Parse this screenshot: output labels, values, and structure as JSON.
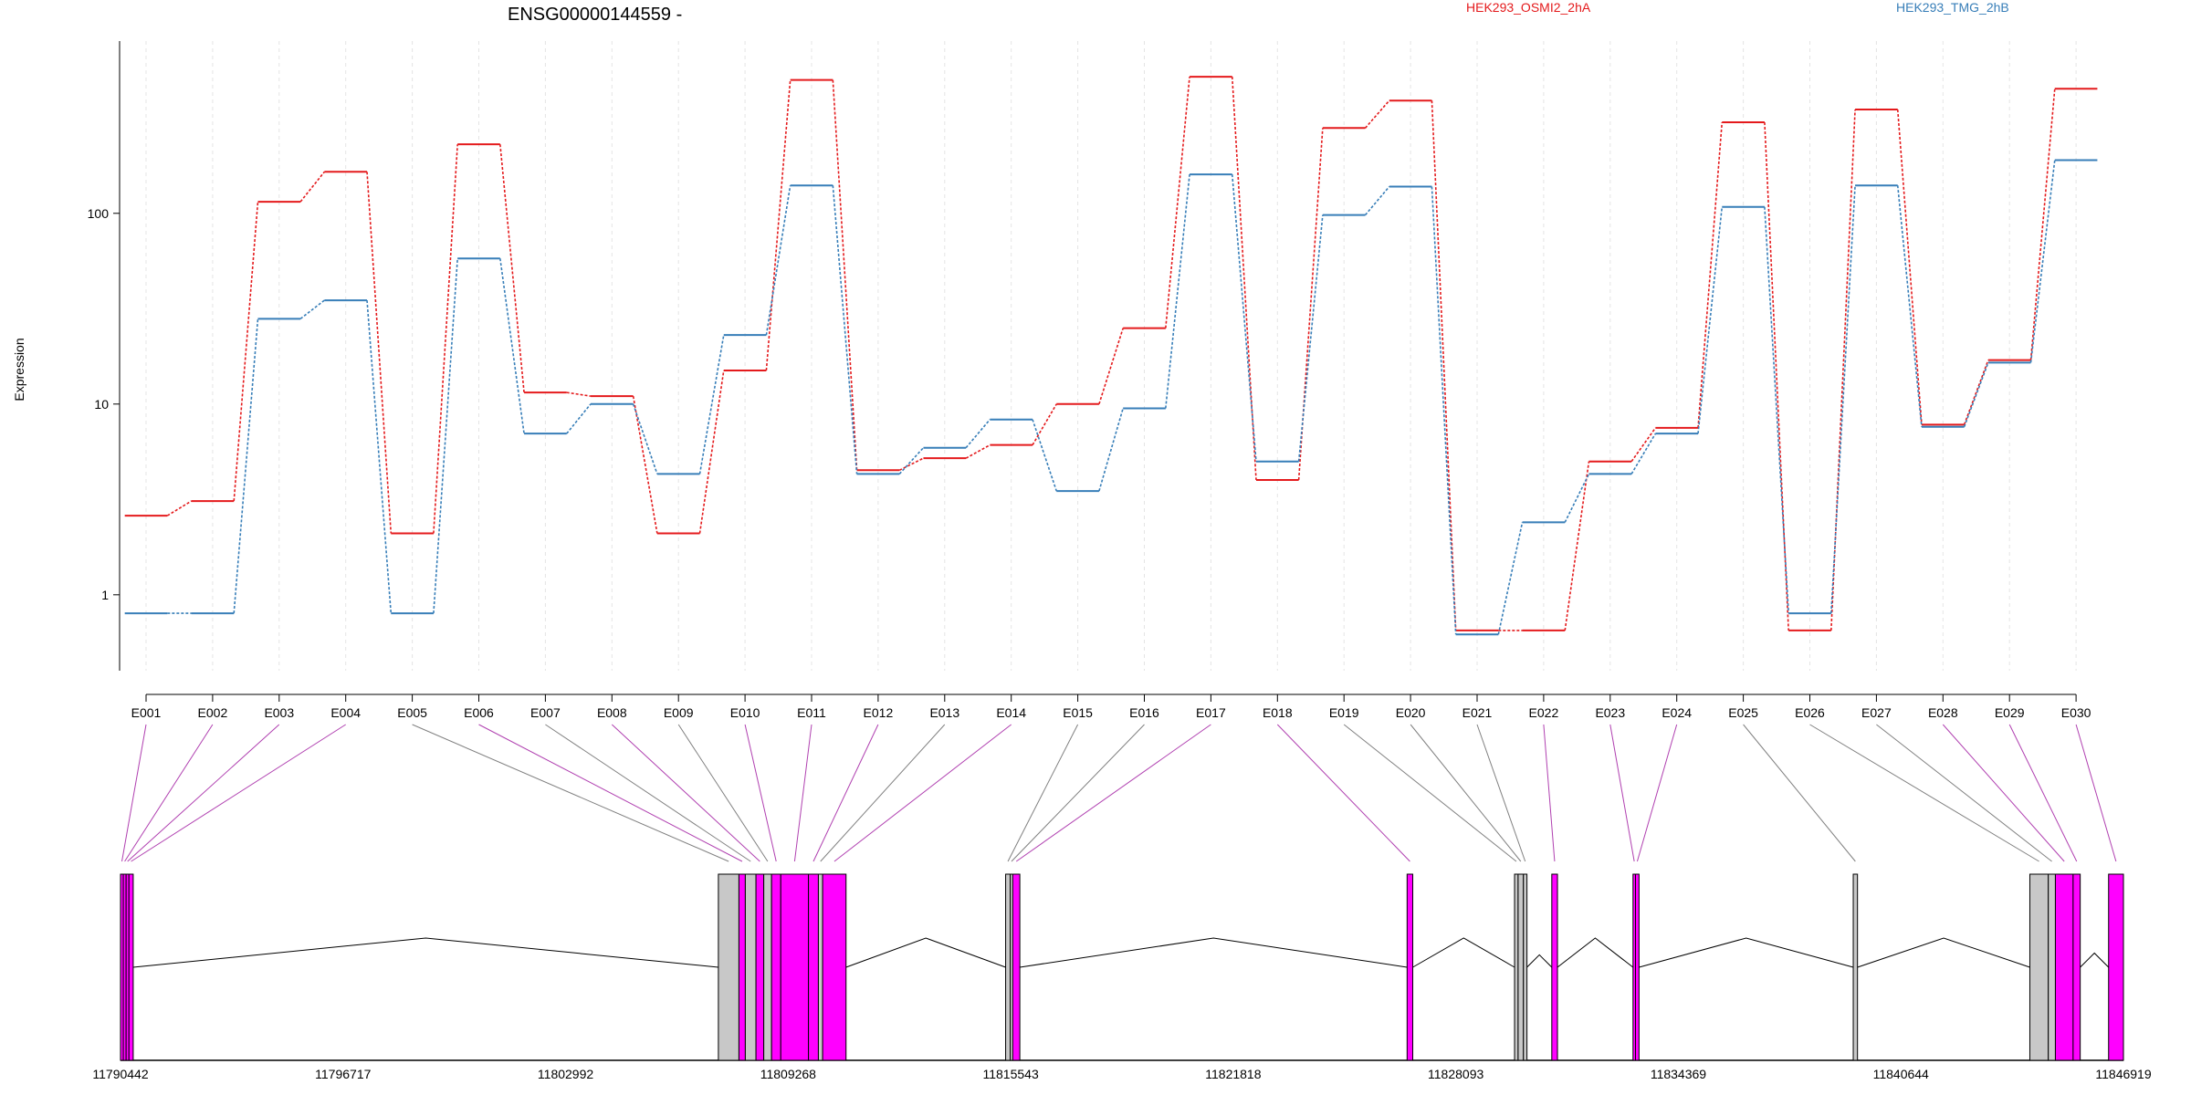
{
  "chart_data": {
    "type": "line",
    "title": "ENSG00000144559 -",
    "xlabel": "",
    "ylabel": "Expression",
    "y_scale": "log",
    "ylim": [
      0.4,
      800
    ],
    "yticks": [
      1,
      10,
      100
    ],
    "legend_placement": "top-right",
    "categories": [
      "E001",
      "E002",
      "E003",
      "E004",
      "E005",
      "E006",
      "E007",
      "E008",
      "E009",
      "E010",
      "E011",
      "E012",
      "E013",
      "E014",
      "E015",
      "E016",
      "E017",
      "E018",
      "E019",
      "E020",
      "E021",
      "E022",
      "E023",
      "E024",
      "E025",
      "E026",
      "E027",
      "E028",
      "E029",
      "E030"
    ],
    "series": [
      {
        "name": "HEK293_OSMI2_2hA",
        "color": "#e41a1c",
        "values": [
          2.6,
          3.1,
          115,
          165,
          2.1,
          230,
          11.5,
          11.0,
          2.1,
          15.0,
          500,
          4.5,
          5.2,
          6.1,
          10.0,
          25,
          520,
          4.0,
          280,
          390,
          0.65,
          0.65,
          5.0,
          7.5,
          300,
          0.65,
          350,
          7.8,
          17,
          450
        ]
      },
      {
        "name": "HEK293_TMG_2hB",
        "color": "#377eb8",
        "values": [
          0.8,
          0.8,
          28,
          35,
          0.8,
          58,
          7.0,
          10.0,
          4.3,
          23,
          140,
          4.3,
          5.9,
          8.3,
          3.5,
          9.5,
          160,
          5.0,
          98,
          138,
          0.62,
          2.4,
          4.3,
          7.0,
          108,
          0.8,
          140,
          7.6,
          16.5,
          190
        ]
      }
    ],
    "gene_model": {
      "coordinates": [
        "11790442",
        "11796717",
        "11802992",
        "11809268",
        "11815543",
        "11821818",
        "11828093",
        "11834369",
        "11840644",
        "11846919"
      ],
      "range": [
        11790442,
        11846919
      ],
      "exon_bins": [
        [
          11790442,
          11790520
        ],
        [
          11790520,
          11790600
        ],
        [
          11790600,
          11790680
        ],
        [
          11790680,
          11790800
        ],
        [
          11807300,
          11807880
        ],
        [
          11807880,
          11808060
        ],
        [
          11808060,
          11808360
        ],
        [
          11808360,
          11808580
        ],
        [
          11808580,
          11808800
        ],
        [
          11808800,
          11809060
        ],
        [
          11809060,
          11809840
        ],
        [
          11809840,
          11810120
        ],
        [
          11810120,
          11810240
        ],
        [
          11810240,
          11810900
        ],
        [
          11815400,
          11815530
        ],
        [
          11815530,
          11815600
        ],
        [
          11815600,
          11815800
        ],
        [
          11826720,
          11826880
        ],
        [
          11829750,
          11829850
        ],
        [
          11829850,
          11830000
        ],
        [
          11830000,
          11830100
        ],
        [
          11830800,
          11830960
        ],
        [
          11833090,
          11833160
        ],
        [
          11833160,
          11833260
        ],
        [
          11839300,
          11839420
        ],
        [
          11844280,
          11844800
        ],
        [
          11844800,
          11845000
        ],
        [
          11845000,
          11845500
        ],
        [
          11845500,
          11845700
        ],
        [
          11846500,
          11846919
        ]
      ],
      "exon_colors": [
        "#ff00ff",
        "#ff00ff",
        "#ff00ff",
        "#ff00ff",
        "#c8c8c8",
        "#ff00ff",
        "#c8c8c8",
        "#ff00ff",
        "#c8c8c8",
        "#ff00ff",
        "#ff00ff",
        "#ff00ff",
        "#c8c8c8",
        "#ff00ff",
        "#c8c8c8",
        "#c8c8c8",
        "#ff00ff",
        "#ff00ff",
        "#c8c8c8",
        "#c8c8c8",
        "#c8c8c8",
        "#ff00ff",
        "#ff00ff",
        "#ff00ff",
        "#c8c8c8",
        "#c8c8c8",
        "#c8c8c8",
        "#ff00ff",
        "#ff00ff",
        "#ff00ff"
      ],
      "exon_color_tested": "#ff00ff",
      "exon_color_untested": "#c8c8c8"
    }
  }
}
